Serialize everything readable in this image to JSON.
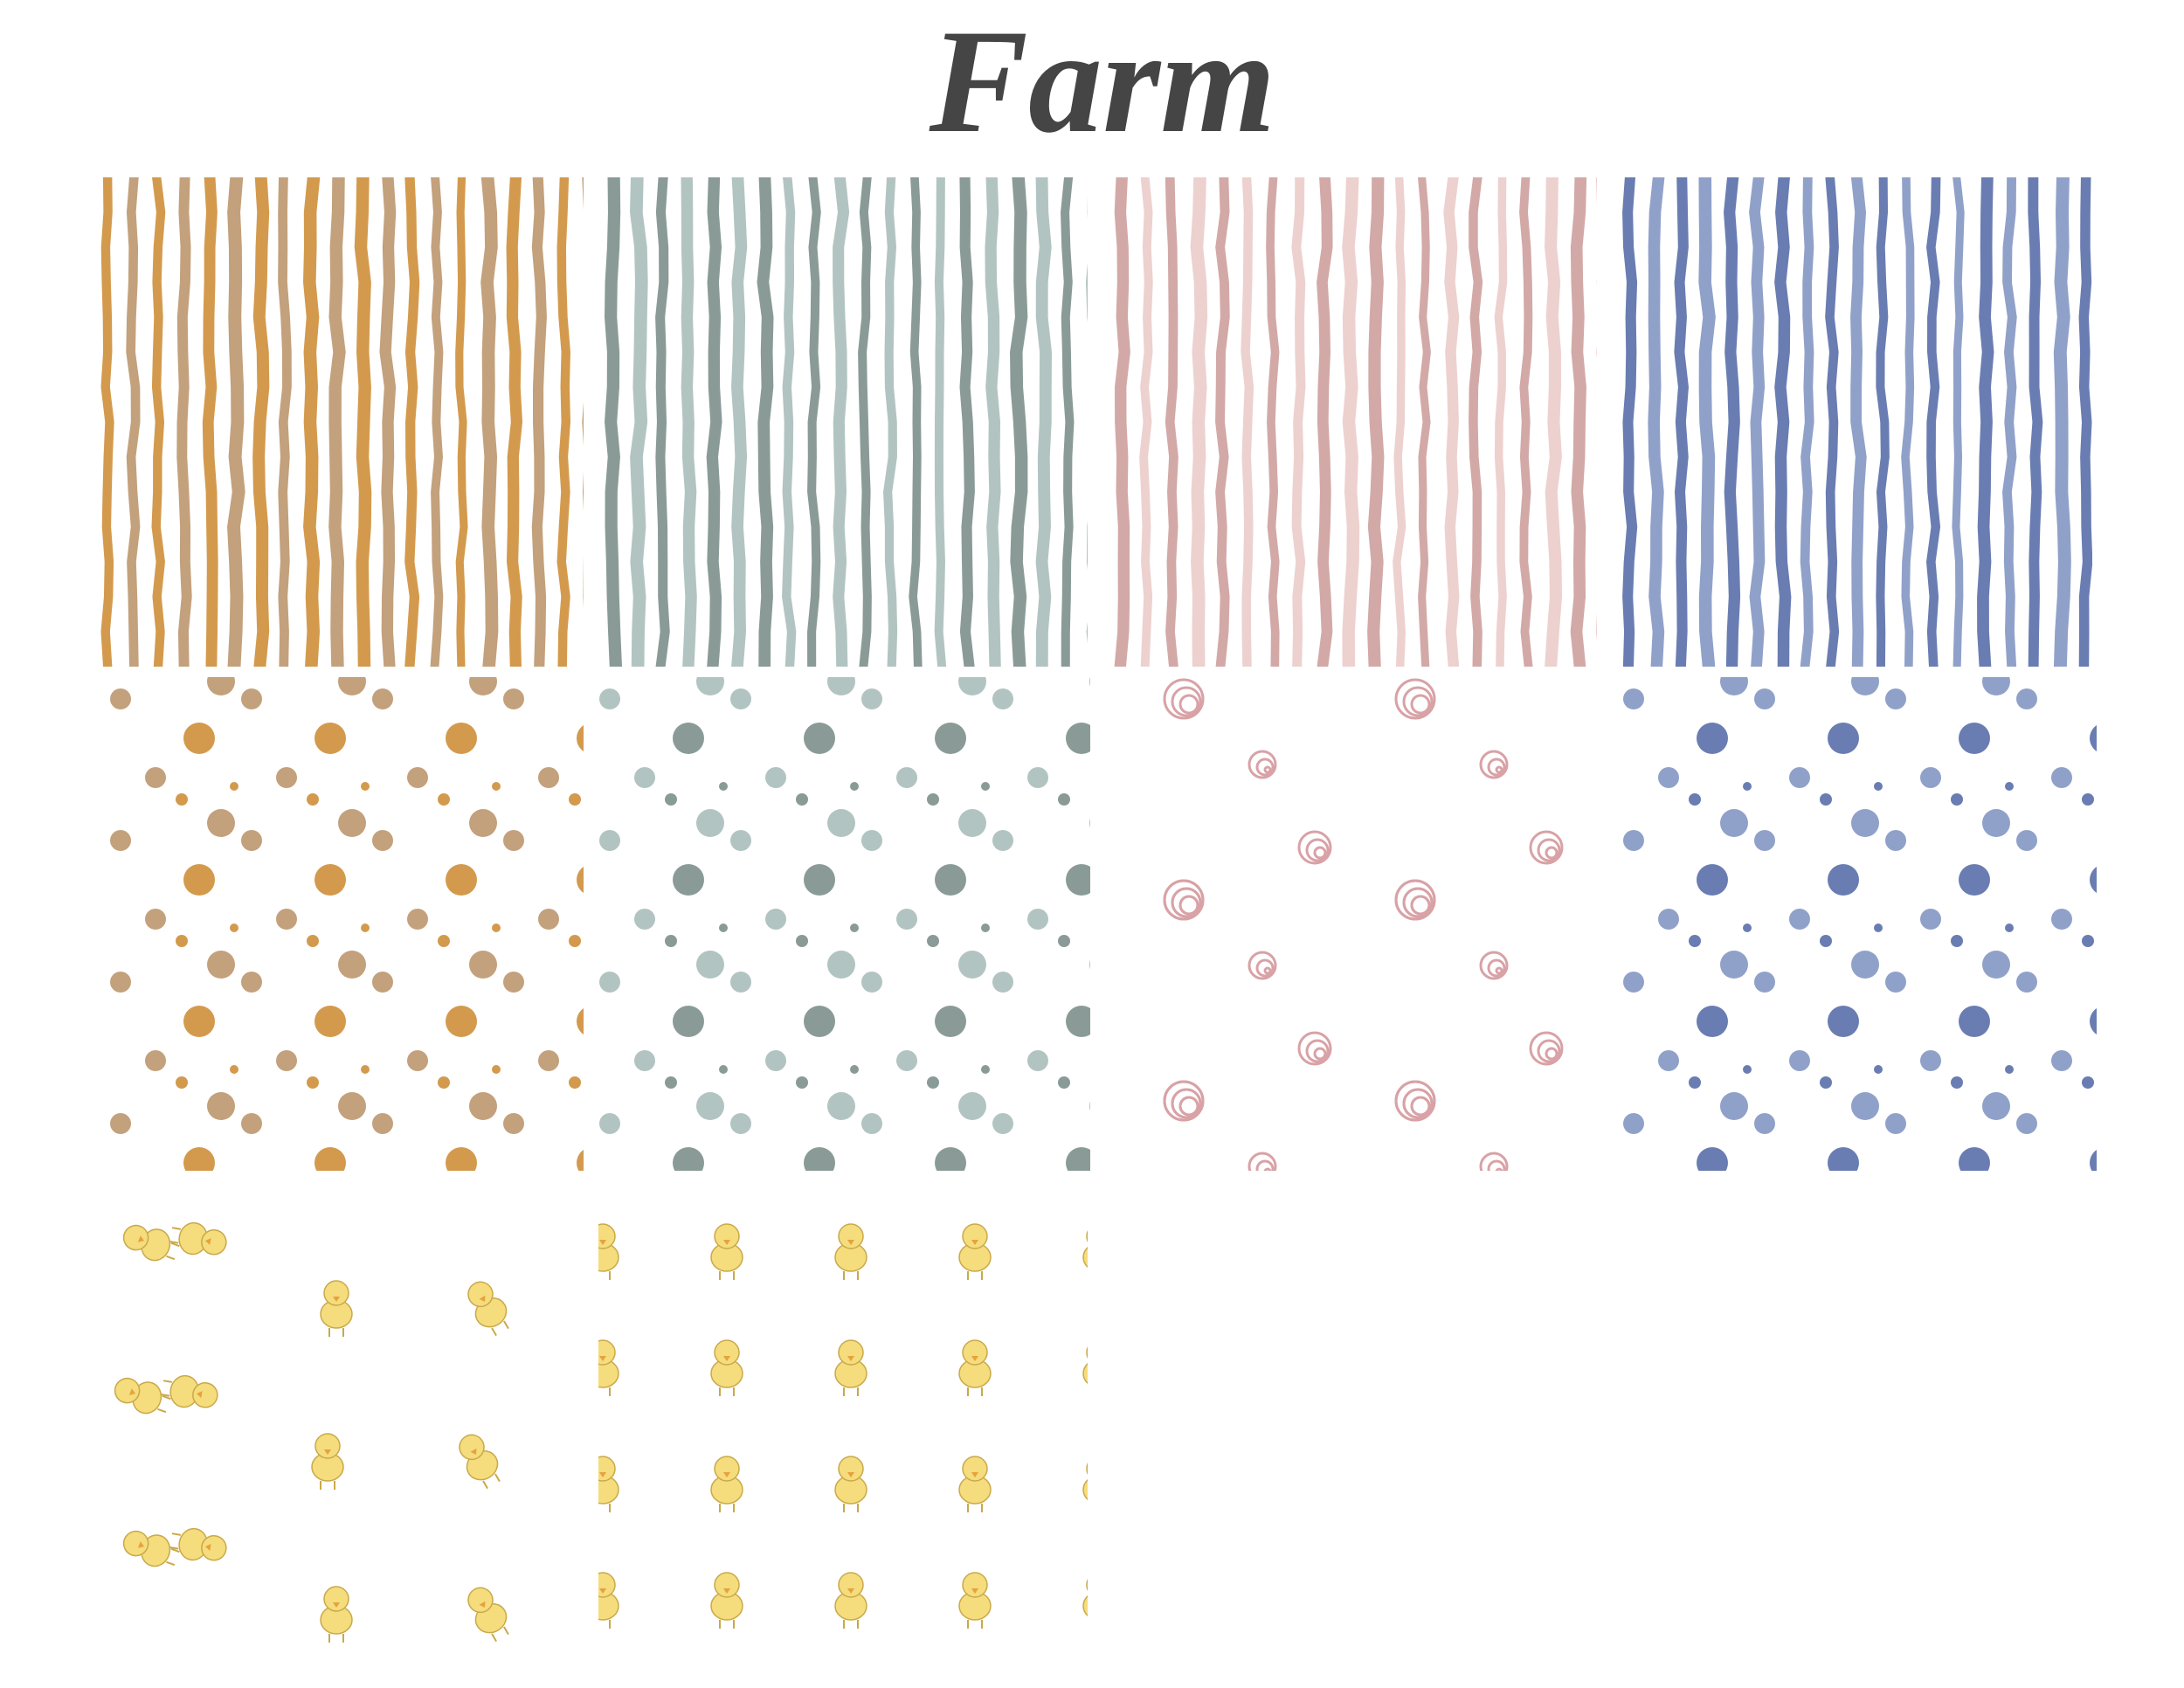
{
  "header": {
    "title": "Farm"
  }
}
